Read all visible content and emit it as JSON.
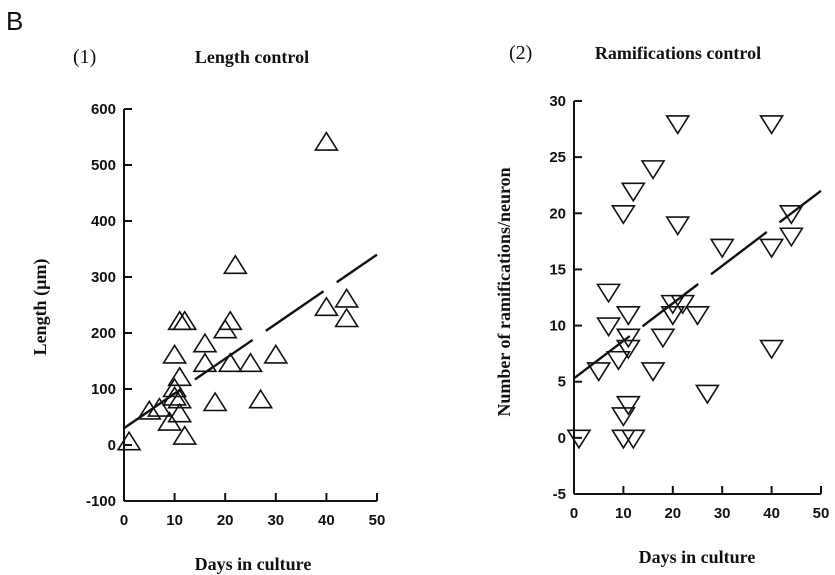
{
  "figure": {
    "panel_letter": "B"
  },
  "chart_data": [
    {
      "type": "scatter",
      "panel_label": "(1)",
      "title": "Length control",
      "xlabel": "Days in culture",
      "ylabel": "Length (µm)",
      "xlim": [
        0,
        50
      ],
      "ylim": [
        -100,
        600
      ],
      "xticks": [
        0,
        10,
        20,
        30,
        40,
        50
      ],
      "yticks": [
        -100,
        0,
        100,
        200,
        300,
        400,
        500,
        600
      ],
      "marker": "triangle-up",
      "grid": false,
      "points": [
        {
          "x": 1,
          "y": 5
        },
        {
          "x": 5,
          "y": 60
        },
        {
          "x": 7,
          "y": 65
        },
        {
          "x": 9,
          "y": 40
        },
        {
          "x": 10,
          "y": 160
        },
        {
          "x": 10,
          "y": 100
        },
        {
          "x": 10,
          "y": 85
        },
        {
          "x": 11,
          "y": 220
        },
        {
          "x": 11,
          "y": 120
        },
        {
          "x": 11,
          "y": 80
        },
        {
          "x": 11,
          "y": 55
        },
        {
          "x": 12,
          "y": 15
        },
        {
          "x": 12,
          "y": 220
        },
        {
          "x": 16,
          "y": 180
        },
        {
          "x": 16,
          "y": 145
        },
        {
          "x": 18,
          "y": 75
        },
        {
          "x": 20,
          "y": 205
        },
        {
          "x": 21,
          "y": 220
        },
        {
          "x": 21,
          "y": 145
        },
        {
          "x": 22,
          "y": 320
        },
        {
          "x": 25,
          "y": 145
        },
        {
          "x": 27,
          "y": 80
        },
        {
          "x": 30,
          "y": 160
        },
        {
          "x": 40,
          "y": 540
        },
        {
          "x": 40,
          "y": 245
        },
        {
          "x": 44,
          "y": 260
        },
        {
          "x": 44,
          "y": 225
        }
      ],
      "trendline": {
        "x": [
          0,
          50
        ],
        "y": [
          30,
          340
        ],
        "style": "dashed"
      }
    },
    {
      "type": "scatter",
      "panel_label": "(2)",
      "title": "Ramifications control",
      "xlabel": "Days in culture",
      "ylabel": "Number of ramifications/neuron",
      "xlim": [
        0,
        50
      ],
      "ylim": [
        -5,
        30
      ],
      "xticks": [
        0,
        10,
        20,
        30,
        40,
        50
      ],
      "yticks": [
        -5,
        0,
        5,
        10,
        15,
        20,
        25,
        30
      ],
      "marker": "triangle-down",
      "grid": false,
      "points": [
        {
          "x": 1,
          "y": 0
        },
        {
          "x": 5,
          "y": 6
        },
        {
          "x": 7,
          "y": 13
        },
        {
          "x": 7,
          "y": 10
        },
        {
          "x": 9,
          "y": 7
        },
        {
          "x": 10,
          "y": 20
        },
        {
          "x": 10,
          "y": 2
        },
        {
          "x": 10,
          "y": 0
        },
        {
          "x": 11,
          "y": 11
        },
        {
          "x": 11,
          "y": 9
        },
        {
          "x": 11,
          "y": 8
        },
        {
          "x": 11,
          "y": 3
        },
        {
          "x": 12,
          "y": 22
        },
        {
          "x": 12,
          "y": 0
        },
        {
          "x": 16,
          "y": 24
        },
        {
          "x": 16,
          "y": 6
        },
        {
          "x": 18,
          "y": 9
        },
        {
          "x": 20,
          "y": 12
        },
        {
          "x": 20,
          "y": 11
        },
        {
          "x": 21,
          "y": 28
        },
        {
          "x": 21,
          "y": 19
        },
        {
          "x": 22,
          "y": 12
        },
        {
          "x": 25,
          "y": 11
        },
        {
          "x": 27,
          "y": 4
        },
        {
          "x": 30,
          "y": 17
        },
        {
          "x": 40,
          "y": 28
        },
        {
          "x": 40,
          "y": 17
        },
        {
          "x": 40,
          "y": 8
        },
        {
          "x": 44,
          "y": 20
        },
        {
          "x": 44,
          "y": 18
        }
      ],
      "trendline": {
        "x": [
          0,
          50
        ],
        "y": [
          5.3,
          22
        ],
        "style": "dashed"
      }
    }
  ]
}
